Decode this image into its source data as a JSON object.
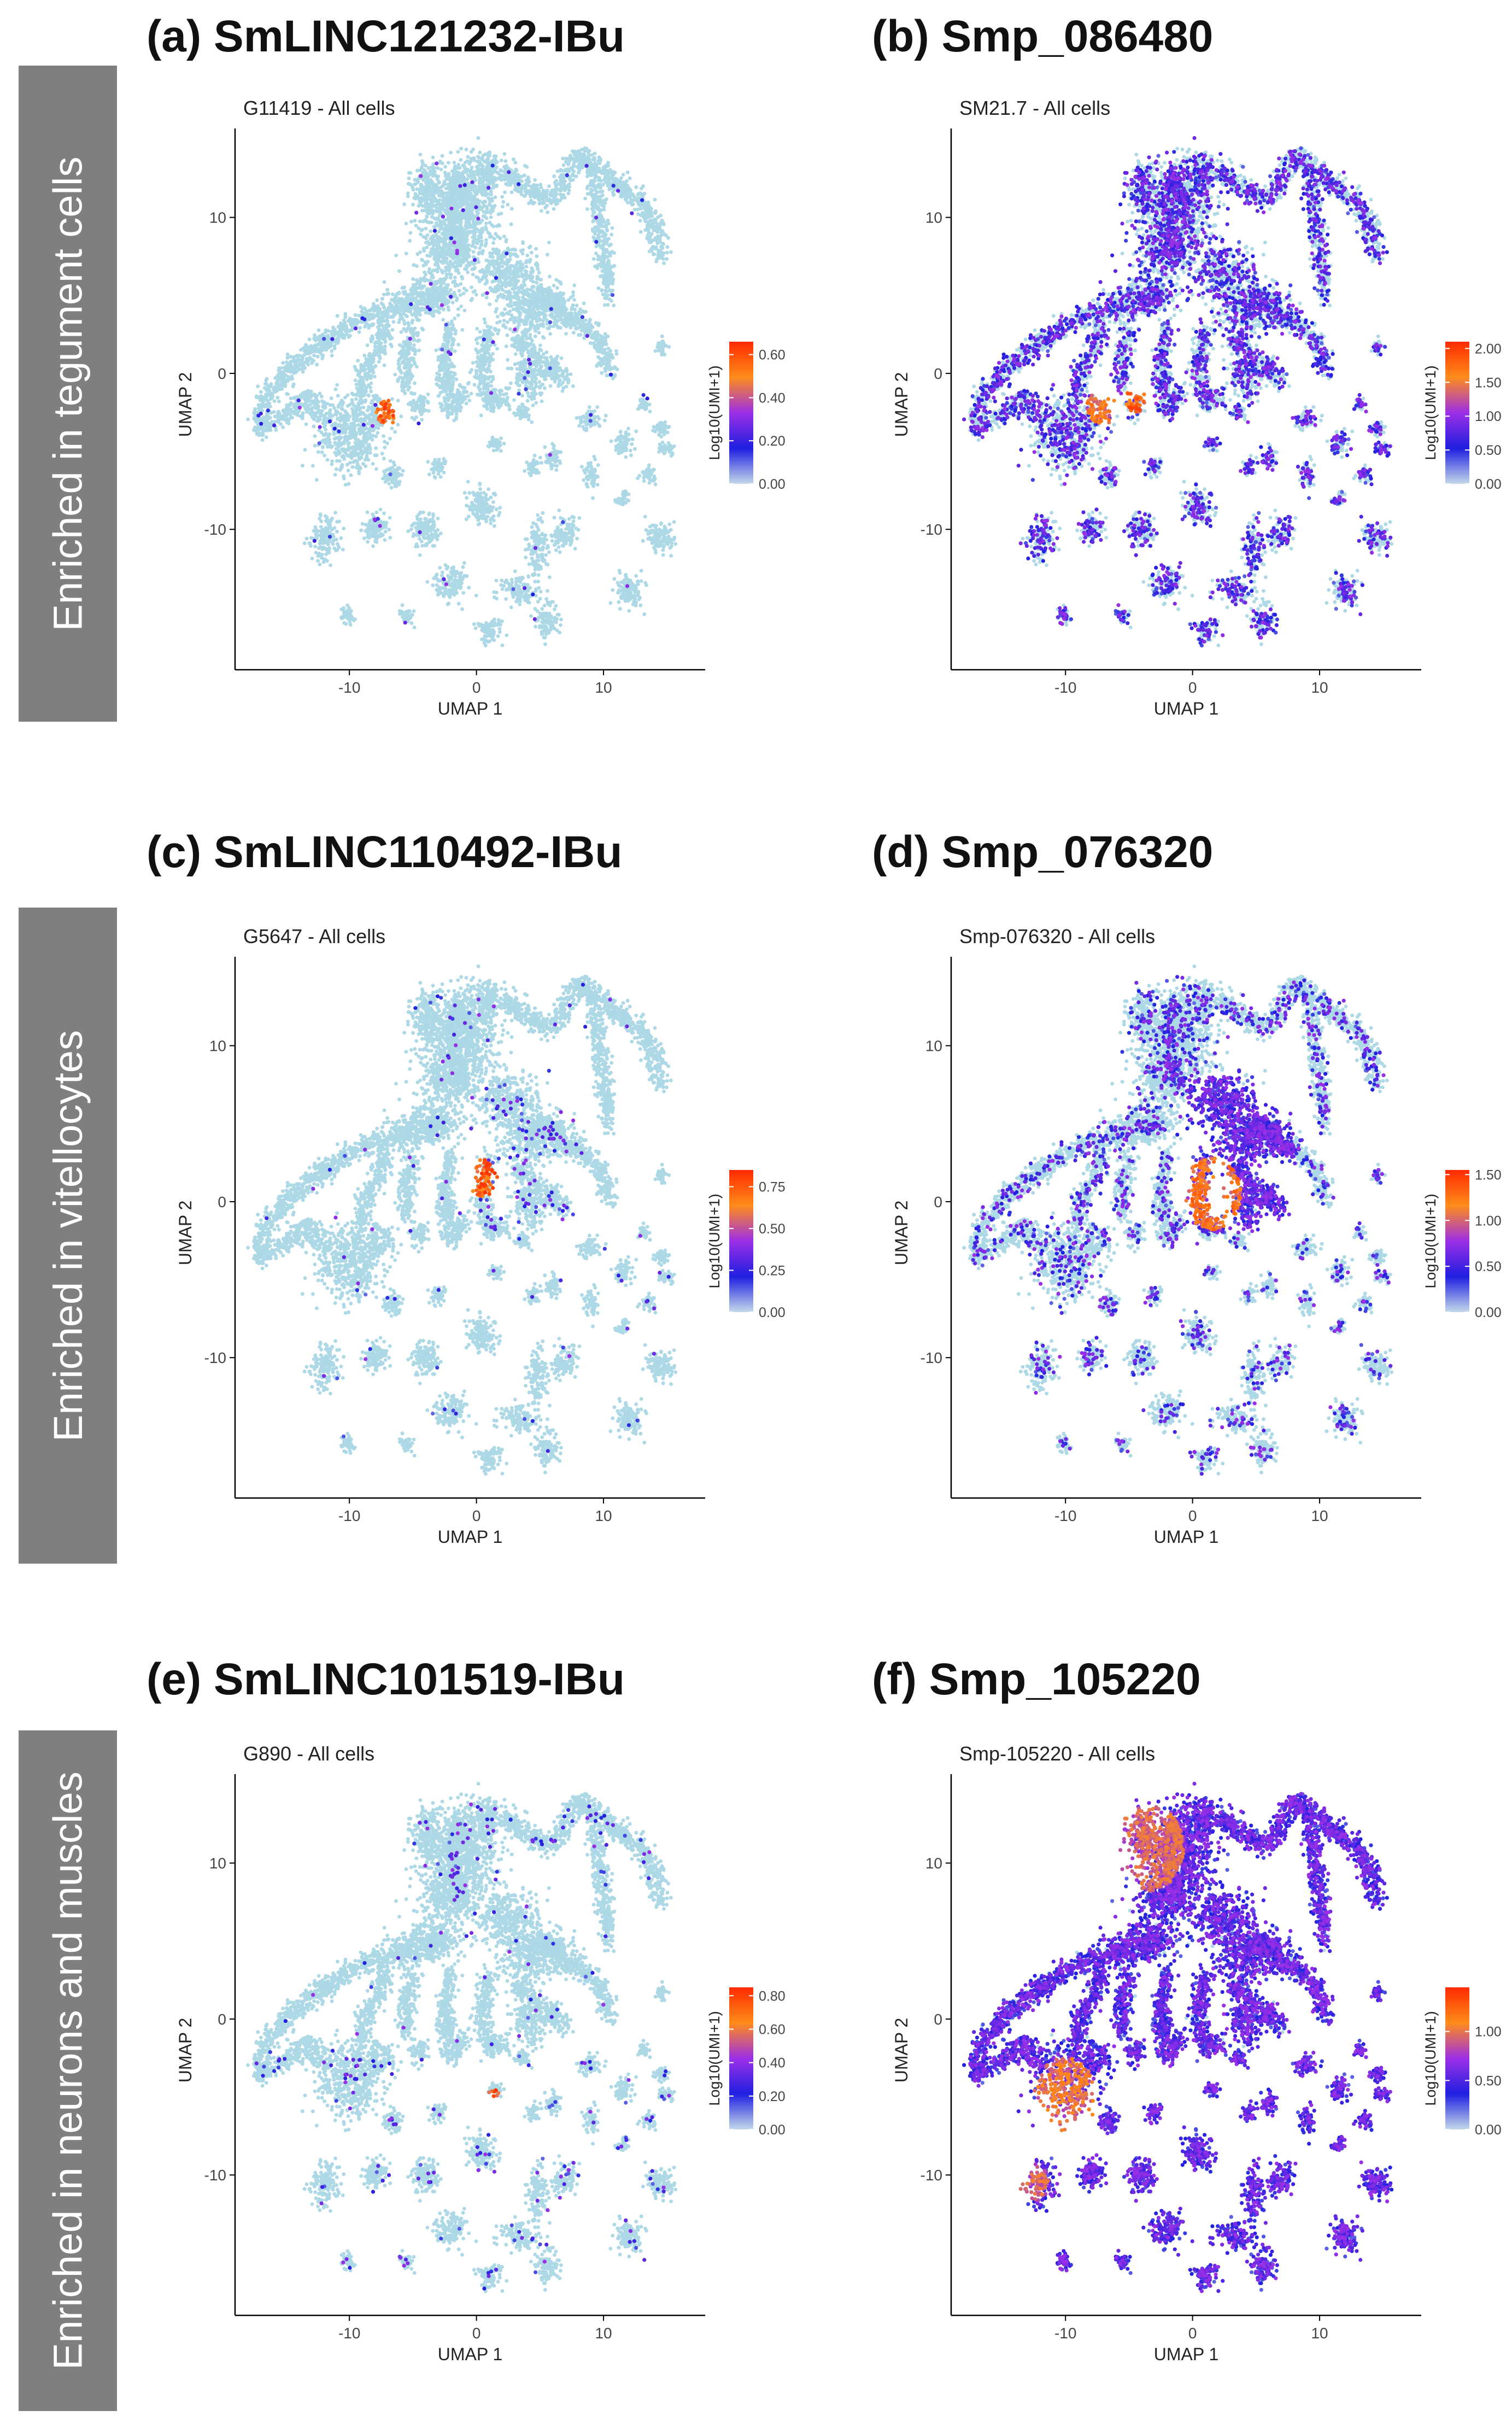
{
  "rows": [
    {
      "label": "Enriched in tegument cells"
    },
    {
      "label": "Enriched in vitellocytes"
    },
    {
      "label": "Enriched in neurons and muscles"
    }
  ],
  "chart_data": [
    {
      "type": "scatter",
      "panel_title": "(a) SmLINC121232-IBu",
      "subtitle": "G11419 - All cells",
      "xlabel": "UMAP 1",
      "ylabel": "UMAP 2",
      "xlim": [
        -19,
        18
      ],
      "ylim": [
        -19,
        15
      ],
      "x_ticks": [
        -10,
        0,
        10
      ],
      "y_ticks": [
        -10,
        0,
        10
      ],
      "legend_title": "Log10(UMI+1)",
      "legend_range": [
        0,
        0.66
      ],
      "legend_ticks": [
        "0.00",
        "0.20",
        "0.40",
        "0.60"
      ],
      "legend_tick_values": [
        0,
        0.2,
        0.4,
        0.6
      ],
      "expression": "sparse",
      "hotspots": [
        {
          "x": -7,
          "y": -2.5,
          "r": 0.9,
          "level": 0.6
        }
      ]
    },
    {
      "type": "scatter",
      "panel_title": "(b) Smp_086480",
      "subtitle": "SM21.7 - All cells",
      "xlabel": "UMAP 1",
      "ylabel": "UMAP 2",
      "xlim": [
        -19,
        18
      ],
      "ylim": [
        -19,
        15
      ],
      "x_ticks": [
        -10,
        0,
        10
      ],
      "y_ticks": [
        -10,
        0,
        10
      ],
      "legend_title": "Log10(UMI+1)",
      "legend_range": [
        0,
        2.1
      ],
      "legend_ticks": [
        "0.00",
        "0.50",
        "1.00",
        "1.50",
        "2.00"
      ],
      "legend_tick_values": [
        0,
        0.5,
        1,
        1.5,
        2
      ],
      "expression": "broad",
      "hotspots": [
        {
          "x": -7,
          "y": -2,
          "r": 1.3,
          "level": 1.7
        },
        {
          "x": -4.5,
          "y": -1.6,
          "r": 0.9,
          "level": 1.9
        }
      ]
    },
    {
      "type": "scatter",
      "panel_title": "(c) SmLINC110492-IBu",
      "subtitle": "G5647 - All cells",
      "xlabel": "UMAP 1",
      "ylabel": "UMAP 2",
      "xlim": [
        -19,
        18
      ],
      "ylim": [
        -19,
        15
      ],
      "x_ticks": [
        -10,
        0,
        10
      ],
      "y_ticks": [
        -10,
        0,
        10
      ],
      "legend_title": "Log10(UMI+1)",
      "legend_range": [
        0,
        0.85
      ],
      "legend_ticks": [
        "0.00",
        "0.25",
        "0.50",
        "0.75"
      ],
      "legend_tick_values": [
        0,
        0.25,
        0.5,
        0.75
      ],
      "expression": "vitellocyte-sparse",
      "hotspots": [
        {
          "x": 0.5,
          "y": 1.5,
          "r": 1.2,
          "level": 0.8
        }
      ]
    },
    {
      "type": "scatter",
      "panel_title": "(d) Smp_076320",
      "subtitle": "Smp-076320 - All cells",
      "xlabel": "UMAP 1",
      "ylabel": "UMAP 2",
      "xlim": [
        -19,
        18
      ],
      "ylim": [
        -19,
        15
      ],
      "x_ticks": [
        -10,
        0,
        10
      ],
      "y_ticks": [
        -10,
        0,
        10
      ],
      "legend_title": "Log10(UMI+1)",
      "legend_range": [
        0,
        1.55
      ],
      "legend_ticks": [
        "0.00",
        "0.50",
        "1.00",
        "1.50"
      ],
      "legend_tick_values": [
        0,
        0.5,
        1,
        1.5
      ],
      "expression": "vitellocyte-strong",
      "hotspots": [
        {
          "x": 1.5,
          "y": 0.5,
          "r": 2.3,
          "level": 1.3
        }
      ]
    },
    {
      "type": "scatter",
      "panel_title": "(e) SmLINC101519-IBu",
      "subtitle": "G890 - All cells",
      "xlabel": "UMAP 1",
      "ylabel": "UMAP 2",
      "xlim": [
        -19,
        18
      ],
      "ylim": [
        -19,
        15
      ],
      "x_ticks": [
        -10,
        0,
        10
      ],
      "y_ticks": [
        -10,
        0,
        10
      ],
      "legend_title": "Log10(UMI+1)",
      "legend_range": [
        0,
        0.85
      ],
      "legend_ticks": [
        "0.00",
        "0.20",
        "0.40",
        "0.60",
        "0.80"
      ],
      "legend_tick_values": [
        0,
        0.2,
        0.4,
        0.6,
        0.8
      ],
      "expression": "neuron-sparse",
      "hotspots": [
        {
          "x": 1.3,
          "y": -5,
          "r": 0.5,
          "level": 0.8
        }
      ]
    },
    {
      "type": "scatter",
      "panel_title": "(f) Smp_105220",
      "subtitle": "Smp-105220 - All cells",
      "xlabel": "UMAP 1",
      "ylabel": "UMAP 2",
      "xlim": [
        -19,
        18
      ],
      "ylim": [
        -19,
        15
      ],
      "x_ticks": [
        -10,
        0,
        10
      ],
      "y_ticks": [
        -10,
        0,
        10
      ],
      "legend_title": "Log10(UMI+1)",
      "legend_range": [
        0,
        1.45
      ],
      "legend_ticks": [
        "0.00",
        "0.50",
        "1.00"
      ],
      "legend_tick_values": [
        0,
        0.5,
        1
      ],
      "expression": "neuron-strong",
      "hotspots": [
        {
          "x": -3.5,
          "y": 11,
          "r": 2.8,
          "level": 1.0
        },
        {
          "x": -10,
          "y": -5,
          "r": 2.5,
          "level": 1.1
        },
        {
          "x": -12.5,
          "y": -10.5,
          "r": 1.2,
          "level": 1.0
        }
      ]
    }
  ],
  "colors": {
    "background_cells": "#add8e6",
    "axis": "#000000",
    "text": "#222222",
    "gradient": [
      "#c5d9ea",
      "#1f1fe0",
      "#9c2fe6",
      "#ff8c1a",
      "#ff2a00"
    ]
  }
}
